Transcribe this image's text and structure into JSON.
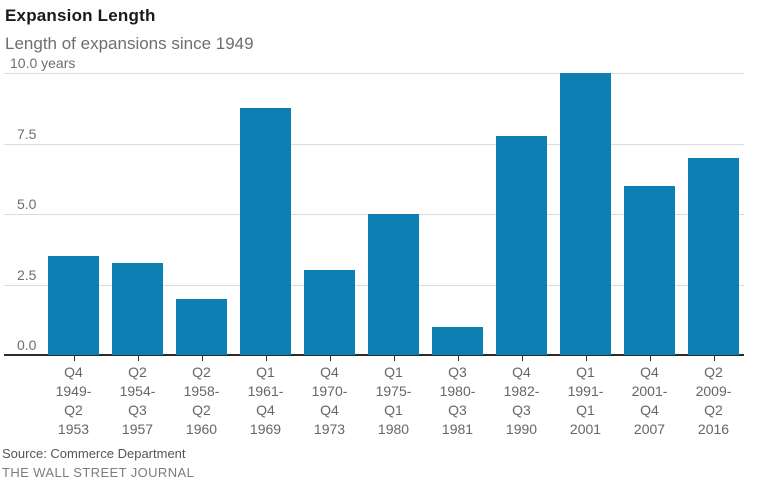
{
  "header": {
    "title": "Expansion Length",
    "subtitle": "Length of expansions since 1949"
  },
  "chart_data": {
    "type": "bar",
    "title": "Expansion Length",
    "subtitle": "Length of expansions since 1949",
    "categories": [
      [
        "Q4",
        "1949-",
        "Q2",
        "1953"
      ],
      [
        "Q2",
        "1954-",
        "Q3",
        "1957"
      ],
      [
        "Q2",
        "1958-",
        "Q2",
        "1960"
      ],
      [
        "Q1",
        "1961-",
        "Q4",
        "1969"
      ],
      [
        "Q4",
        "1970-",
        "Q4",
        "1973"
      ],
      [
        "Q1",
        "1975-",
        "Q1",
        "1980"
      ],
      [
        "Q3",
        "1980-",
        "Q3",
        "1981"
      ],
      [
        "Q4",
        "1982-",
        "Q3",
        "1990"
      ],
      [
        "Q1",
        "1991-",
        "Q1",
        "2001"
      ],
      [
        "Q4",
        "2001-",
        "Q4",
        "2007"
      ],
      [
        "Q2",
        "2009-",
        "Q2",
        "2016"
      ]
    ],
    "values": [
      3.5,
      3.25,
      2.0,
      8.75,
      3.0,
      5.0,
      1.0,
      7.75,
      10.0,
      6.0,
      7.0
    ],
    "xlabel": "",
    "ylabel": "years",
    "ylim": [
      0,
      10
    ],
    "yticks": [
      {
        "value": 10.0,
        "label": "10.0 years"
      },
      {
        "value": 7.5,
        "label": "7.5"
      },
      {
        "value": 5.0,
        "label": "5.0"
      },
      {
        "value": 2.5,
        "label": "2.5"
      },
      {
        "value": 0.0,
        "label": "0.0"
      }
    ],
    "grid": true,
    "legend": null,
    "bar_color": "#0d7fb2",
    "gridline_color": "#dcdcdc",
    "axis_color": "#2b2b2b"
  },
  "footer": {
    "source": "Source: Commerce Department",
    "credit": "THE WALL STREET JOURNAL"
  }
}
